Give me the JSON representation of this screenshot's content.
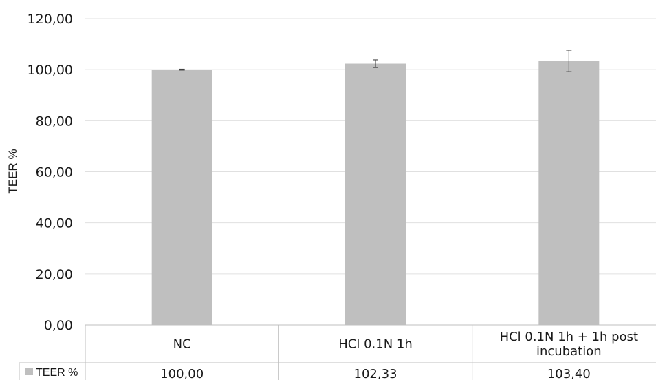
{
  "chart_data": {
    "type": "bar",
    "title": "",
    "xlabel": "",
    "ylabel": "TEER %",
    "ylim": [
      0,
      120
    ],
    "ytick_step": 20,
    "ytick_labels": [
      "0,00",
      "20,00",
      "40,00",
      "60,00",
      "80,00",
      "100,00",
      "120,00"
    ],
    "grid": true,
    "legend": "data-table-row",
    "categories": [
      [
        "NC"
      ],
      [
        "HCl 0.1N 1h"
      ],
      [
        "HCl 0.1N 1h + 1h post",
        "incubation"
      ]
    ],
    "series": [
      {
        "name": "TEER %",
        "color": "#bfbfbf",
        "values": [
          100.0,
          102.33,
          103.4
        ],
        "value_labels": [
          "100,00",
          "102,33",
          "103,40"
        ],
        "error": [
          0.2,
          1.5,
          4.2
        ]
      }
    ]
  }
}
